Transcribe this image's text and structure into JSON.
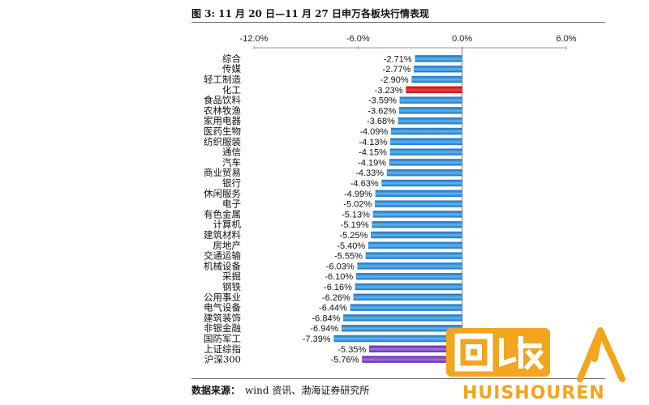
{
  "title": "图 3:  11 月 20 日—11 月 27 日申万各板块行情表现",
  "source": {
    "label": "数据来源：",
    "text": "wind 资讯、渤海证券研究所"
  },
  "watermark": {
    "badge_text": "回收",
    "text": "HUISHOUREN"
  },
  "colors": {
    "default_bar": "#2f8ee0",
    "highlight_bar": "#e21a1a",
    "index_bar": "#7b3fc4"
  },
  "chart_data": {
    "type": "bar",
    "orientation": "horizontal",
    "xlim": [
      -12,
      6
    ],
    "x_ticks": [
      "-12.0%",
      "-6.0%",
      "0.0%",
      "6.0%"
    ],
    "x_tick_values": [
      -12,
      -6,
      0,
      6
    ],
    "xaxis_position": "top",
    "grid": false,
    "categories": [
      "综合",
      "传媒",
      "轻工制造",
      "化工",
      "食品饮料",
      "农林牧渔",
      "家用电器",
      "医药生物",
      "纺织服装",
      "通信",
      "汽车",
      "商业贸易",
      "银行",
      "休闲服务",
      "电子",
      "有色金属",
      "计算机",
      "建筑材料",
      "房地产",
      "交通运输",
      "机械设备",
      "采掘",
      "钢铁",
      "公用事业",
      "电气设备",
      "建筑装饰",
      "非银金融",
      "国防军工",
      "上证综指",
      "沪深300"
    ],
    "values": [
      -2.71,
      -2.77,
      -2.9,
      -3.23,
      -3.59,
      -3.62,
      -3.68,
      -4.09,
      -4.13,
      -4.15,
      -4.19,
      -4.33,
      -4.63,
      -4.99,
      -5.02,
      -5.13,
      -5.19,
      -5.25,
      -5.4,
      -5.55,
      -6.03,
      -6.1,
      -6.16,
      -6.26,
      -6.44,
      -6.84,
      -6.94,
      -7.39,
      -5.35,
      -5.76
    ],
    "data_labels": [
      "-2.71%",
      "-2.77%",
      "-2.90%",
      "-3.23%",
      "-3.59%",
      "-3.62%",
      "-3.68%",
      "-4.09%",
      "-4.13%",
      "-4.15%",
      "-4.19%",
      "-4.33%",
      "-4.63%",
      "-4.99%",
      "-5.02%",
      "-5.13%",
      "-5.19%",
      "-5.25%",
      "-5.40%",
      "-5.55%",
      "-6.03%",
      "-6.10%",
      "-6.16%",
      "-6.26%",
      "-6.44%",
      "-6.84%",
      "-6.94%",
      "-7.39%",
      "-5.35%",
      "-5.76%"
    ],
    "bar_colors": [
      "default",
      "default",
      "default",
      "highlight",
      "default",
      "default",
      "default",
      "default",
      "default",
      "default",
      "default",
      "default",
      "default",
      "default",
      "default",
      "default",
      "default",
      "default",
      "default",
      "default",
      "default",
      "default",
      "default",
      "default",
      "default",
      "default",
      "default",
      "default",
      "index",
      "index"
    ]
  }
}
